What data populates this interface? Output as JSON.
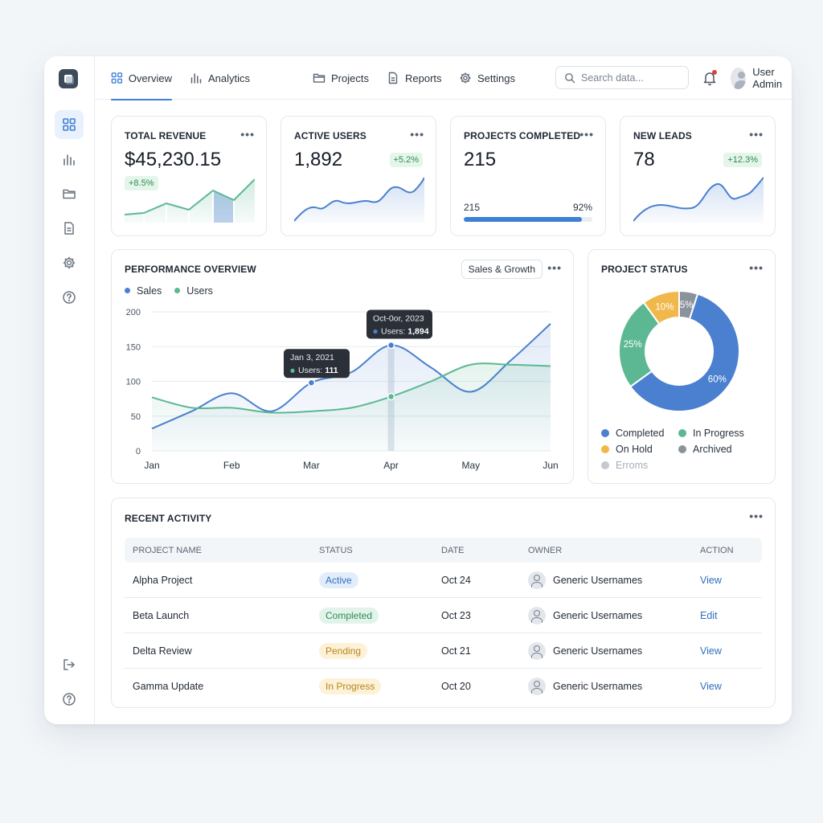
{
  "nav": {
    "tabs": [
      {
        "label": "Overview",
        "icon": "grid-icon"
      },
      {
        "label": "Analytics",
        "icon": "bar-chart-icon"
      },
      {
        "label": "Projects",
        "icon": "folder-icon"
      },
      {
        "label": "Reports",
        "icon": "document-icon"
      },
      {
        "label": "Settings",
        "icon": "gear-icon"
      }
    ],
    "active_tab": "Overview",
    "search_placeholder": "Search data...",
    "user_name": "User Admin"
  },
  "sidebar": {
    "items": [
      "grid-icon",
      "bar-chart-icon",
      "folder-icon",
      "document-icon",
      "gear-icon",
      "help-icon"
    ],
    "bottom_items": [
      "logout-icon",
      "help-icon"
    ]
  },
  "stats": {
    "revenue": {
      "title": "TOTAL REVENUE",
      "value": "$45,230.15",
      "delta": "+8.5%"
    },
    "users": {
      "title": "ACTIVE USERS",
      "value": "1,892",
      "delta": "+5.2%"
    },
    "projects": {
      "title": "PROJECTS COMPLETED",
      "value": "215",
      "progress_left": "215",
      "progress_right": "92%",
      "progress_fraction": 0.92
    },
    "leads": {
      "title": "NEW LEADS",
      "value": "78",
      "delta": "+12.3%"
    }
  },
  "performance": {
    "title": "PERFORMANCE OVERVIEW",
    "selector_label": "Sales & Growth",
    "tooltips": [
      {
        "date": "Jan 3, 2021",
        "label": "Users: ",
        "value": "111"
      },
      {
        "date": "Oct-0or, 2023",
        "label": "Users: ",
        "value": "1,894"
      }
    ]
  },
  "chart_data": [
    {
      "type": "line",
      "x": [
        "Jan",
        "Feb",
        "Mar",
        "Apr",
        "May",
        "Jun"
      ],
      "ylim": [
        0,
        200
      ],
      "yticks": [
        0,
        50,
        100,
        150,
        200
      ],
      "legend": "top-left",
      "grid": true,
      "series": [
        {
          "name": "Sales",
          "color": "#4a80cf",
          "points": [
            [
              0,
              32
            ],
            [
              0.5,
              57
            ],
            [
              1,
              83
            ],
            [
              1.5,
              57
            ],
            [
              2,
              98
            ],
            [
              2.5,
              113
            ],
            [
              3,
              152
            ],
            [
              3.5,
              120
            ],
            [
              4,
              85
            ],
            [
              4.5,
              130
            ],
            [
              5,
              183
            ]
          ]
        },
        {
          "name": "Users",
          "color": "#5cb892",
          "points": [
            [
              0,
              77
            ],
            [
              0.5,
              62
            ],
            [
              1,
              62
            ],
            [
              1.5,
              55
            ],
            [
              2,
              57
            ],
            [
              2.5,
              62
            ],
            [
              3,
              78
            ],
            [
              3.5,
              100
            ],
            [
              4,
              124
            ],
            [
              4.5,
              124
            ],
            [
              5,
              122
            ]
          ]
        }
      ],
      "highlights": [
        {
          "series": "Sales",
          "x": 2,
          "y": 98
        },
        {
          "series": "Sales",
          "x": 3,
          "y": 152
        },
        {
          "series": "Users",
          "x": 3,
          "y": 78
        }
      ]
    },
    {
      "type": "pie",
      "title": "PROJECT STATUS",
      "donut": true,
      "slices": [
        {
          "label": "Completed",
          "value": 60,
          "text": "60%",
          "color": "#4a80cf"
        },
        {
          "label": "In Progress",
          "value": 25,
          "text": "25%",
          "color": "#5cb892"
        },
        {
          "label": "On Hold",
          "value": 10,
          "text": "10%",
          "color": "#f0b84a"
        },
        {
          "label": "Archived",
          "value": 5,
          "text": "5%",
          "color": "#8a929c"
        }
      ],
      "extra_legend": {
        "label": "Erroms",
        "color": "#c4c9cf"
      }
    }
  ],
  "activity": {
    "title": "RECENT ACTIVITY",
    "columns": [
      "PROJECT NAME",
      "STATUS",
      "DATE",
      "OWNER",
      "ACTION"
    ],
    "rows": [
      {
        "name": "Alpha Project",
        "status": "Active",
        "status_bg": "#e2edfb",
        "status_fg": "#2f6fbf",
        "date": "Oct 24",
        "owner": "Generic Usernames",
        "action": "View"
      },
      {
        "name": "Beta Launch",
        "status": "Completed",
        "status_bg": "#e2f4ea",
        "status_fg": "#2f8a56",
        "date": "Oct 23",
        "owner": "Generic Usernames",
        "action": "Edit"
      },
      {
        "name": "Delta Review",
        "status": "Pending",
        "status_bg": "#fdf1d8",
        "status_fg": "#b7871c",
        "date": "Oct 21",
        "owner": "Generic Usernames",
        "action": "View"
      },
      {
        "name": "Gamma Update",
        "status": "In Progress",
        "status_bg": "#fdf1d8",
        "status_fg": "#b7871c",
        "date": "Oct 20",
        "owner": "Generic Usernames",
        "action": "View"
      }
    ]
  }
}
